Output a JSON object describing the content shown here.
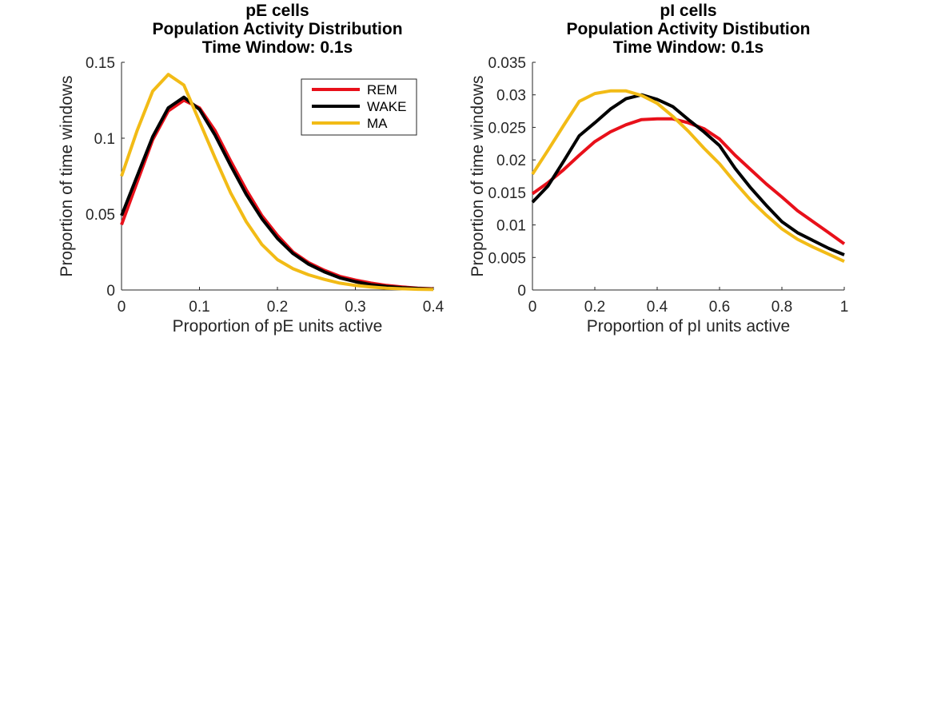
{
  "chart_data": [
    {
      "type": "line",
      "title": [
        "pE cells",
        "Population Activity Distribution",
        "Time Window: 0.1s"
      ],
      "xlabel": "Proportion of pE units active",
      "ylabel": "Proportion of time windows",
      "xlim": [
        0,
        0.4
      ],
      "ylim": [
        0,
        0.15
      ],
      "xticks": [
        0,
        0.1,
        0.2,
        0.3,
        0.4
      ],
      "xtick_labels": [
        "0",
        "0.1",
        "0.2",
        "0.3",
        "0.4"
      ],
      "yticks": [
        0,
        0.05,
        0.1,
        0.15
      ],
      "ytick_labels": [
        "0",
        "0.05",
        "0.1",
        "0.15"
      ],
      "grid": false,
      "legend": {
        "placement": "top-right",
        "entries": [
          "REM",
          "WAKE",
          "MA"
        ]
      },
      "series": [
        {
          "name": "REM",
          "color": "#e8101a",
          "x": [
            0,
            0.02,
            0.04,
            0.06,
            0.08,
            0.1,
            0.12,
            0.14,
            0.16,
            0.18,
            0.2,
            0.22,
            0.24,
            0.26,
            0.28,
            0.3,
            0.32,
            0.34,
            0.36,
            0.38,
            0.4
          ],
          "y": [
            0.043,
            0.071,
            0.099,
            0.118,
            0.125,
            0.12,
            0.105,
            0.085,
            0.066,
            0.049,
            0.036,
            0.025,
            0.018,
            0.013,
            0.009,
            0.0065,
            0.0045,
            0.003,
            0.002,
            0.0012,
            0.0008
          ]
        },
        {
          "name": "WAKE",
          "color": "#000000",
          "x": [
            0,
            0.02,
            0.04,
            0.06,
            0.08,
            0.1,
            0.12,
            0.14,
            0.16,
            0.18,
            0.2,
            0.22,
            0.24,
            0.26,
            0.28,
            0.3,
            0.32,
            0.34,
            0.36,
            0.38,
            0.4
          ],
          "y": [
            0.049,
            0.075,
            0.101,
            0.12,
            0.127,
            0.119,
            0.102,
            0.082,
            0.063,
            0.047,
            0.034,
            0.024,
            0.017,
            0.012,
            0.008,
            0.0055,
            0.0035,
            0.0023,
            0.0015,
            0.001,
            0.0006
          ]
        },
        {
          "name": "MA",
          "color": "#f2bb16",
          "x": [
            0,
            0.02,
            0.04,
            0.06,
            0.08,
            0.1,
            0.12,
            0.14,
            0.16,
            0.18,
            0.2,
            0.22,
            0.24,
            0.26,
            0.28,
            0.3,
            0.32,
            0.34,
            0.36,
            0.38,
            0.4
          ],
          "y": [
            0.075,
            0.105,
            0.131,
            0.142,
            0.135,
            0.111,
            0.087,
            0.064,
            0.045,
            0.03,
            0.02,
            0.014,
            0.01,
            0.007,
            0.0045,
            0.003,
            0.002,
            0.0012,
            0.0008,
            0.0005,
            0.0003
          ]
        }
      ]
    },
    {
      "type": "line",
      "title": [
        "pI cells",
        "Population Activity Distibution",
        "Time Window: 0.1s"
      ],
      "xlabel": "Proportion of pI units active",
      "ylabel": "Proportion of time windows",
      "xlim": [
        0,
        1
      ],
      "ylim": [
        0,
        0.035
      ],
      "xticks": [
        0,
        0.2,
        0.4,
        0.6,
        0.8,
        1
      ],
      "xtick_labels": [
        "0",
        "0.2",
        "0.4",
        "0.6",
        "0.8",
        "1"
      ],
      "yticks": [
        0,
        0.005,
        0.01,
        0.015,
        0.02,
        0.025,
        0.03,
        0.035
      ],
      "ytick_labels": [
        "0",
        "0.005",
        "0.01",
        "0.015",
        "0.02",
        "0.025",
        "0.03",
        "0.035"
      ],
      "grid": false,
      "series": [
        {
          "name": "REM",
          "color": "#e8101a",
          "x": [
            0,
            0.05,
            0.1,
            0.15,
            0.2,
            0.25,
            0.3,
            0.35,
            0.4,
            0.45,
            0.5,
            0.55,
            0.6,
            0.65,
            0.7,
            0.75,
            0.8,
            0.85,
            0.9,
            0.95,
            1
          ],
          "y": [
            0.0148,
            0.0165,
            0.0185,
            0.0207,
            0.0228,
            0.0243,
            0.0254,
            0.0262,
            0.0263,
            0.0263,
            0.0257,
            0.0248,
            0.0232,
            0.0207,
            0.0185,
            0.0163,
            0.0143,
            0.0122,
            0.0105,
            0.0088,
            0.0071
          ]
        },
        {
          "name": "WAKE",
          "color": "#000000",
          "x": [
            0,
            0.05,
            0.1,
            0.15,
            0.2,
            0.25,
            0.3,
            0.35,
            0.4,
            0.45,
            0.5,
            0.55,
            0.6,
            0.65,
            0.7,
            0.75,
            0.8,
            0.85,
            0.9,
            0.95,
            1
          ],
          "y": [
            0.0135,
            0.016,
            0.0198,
            0.0237,
            0.0257,
            0.0278,
            0.0294,
            0.03,
            0.0293,
            0.0282,
            0.0262,
            0.0243,
            0.0222,
            0.0187,
            0.0157,
            0.013,
            0.0105,
            0.0088,
            0.0076,
            0.0064,
            0.0054
          ]
        },
        {
          "name": "MA",
          "color": "#f2bb16",
          "x": [
            0,
            0.05,
            0.1,
            0.15,
            0.2,
            0.25,
            0.3,
            0.35,
            0.4,
            0.45,
            0.5,
            0.55,
            0.6,
            0.65,
            0.7,
            0.75,
            0.8,
            0.85,
            0.9,
            0.95,
            1
          ],
          "y": [
            0.0178,
            0.0215,
            0.0253,
            0.029,
            0.0302,
            0.0306,
            0.0306,
            0.0299,
            0.0287,
            0.0267,
            0.0244,
            0.0218,
            0.0194,
            0.0165,
            0.0138,
            0.0115,
            0.0094,
            0.0078,
            0.0066,
            0.0055,
            0.0044
          ]
        }
      ]
    }
  ]
}
